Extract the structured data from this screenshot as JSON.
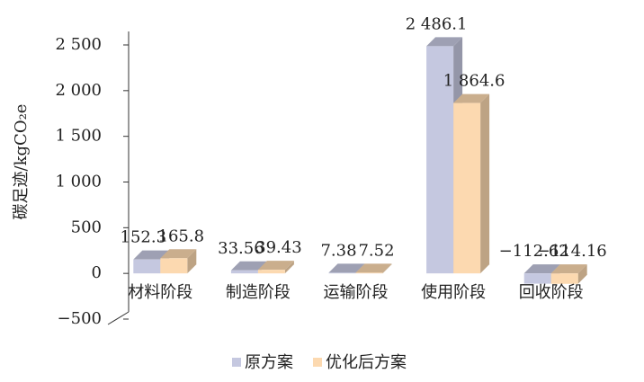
{
  "chart_data": {
    "type": "bar3d",
    "y_label": "碳足迹/kgCO₂e",
    "categories": [
      "材料阶段",
      "制造阶段",
      "运输阶段",
      "使用阶段",
      "回收阶段"
    ],
    "series": [
      {
        "name": "原方案",
        "color": "#c5c8e0",
        "values": [
          152.3,
          33.56,
          7.38,
          2486.1,
          -112.62
        ],
        "value_labels": [
          "152.3",
          "33.56",
          "7.38",
          "2 486.1",
          "−112.62"
        ]
      },
      {
        "name": "优化后方案",
        "color": "#fcd9b0",
        "values": [
          165.8,
          39.43,
          7.52,
          1864.6,
          -114.16
        ],
        "value_labels": [
          "165.8",
          "39.43",
          "7.52",
          "1 864.6",
          "−114.16"
        ]
      }
    ],
    "ylim": [
      -500,
      2500
    ],
    "yticks": [
      {
        "value": -500,
        "label": "−500"
      },
      0,
      500,
      {
        "value": 1000,
        "label": "1 000"
      },
      {
        "value": 1500,
        "label": "1 500"
      },
      {
        "value": 2000,
        "label": "2 000"
      },
      {
        "value": 2500,
        "label": "2 500"
      }
    ]
  }
}
